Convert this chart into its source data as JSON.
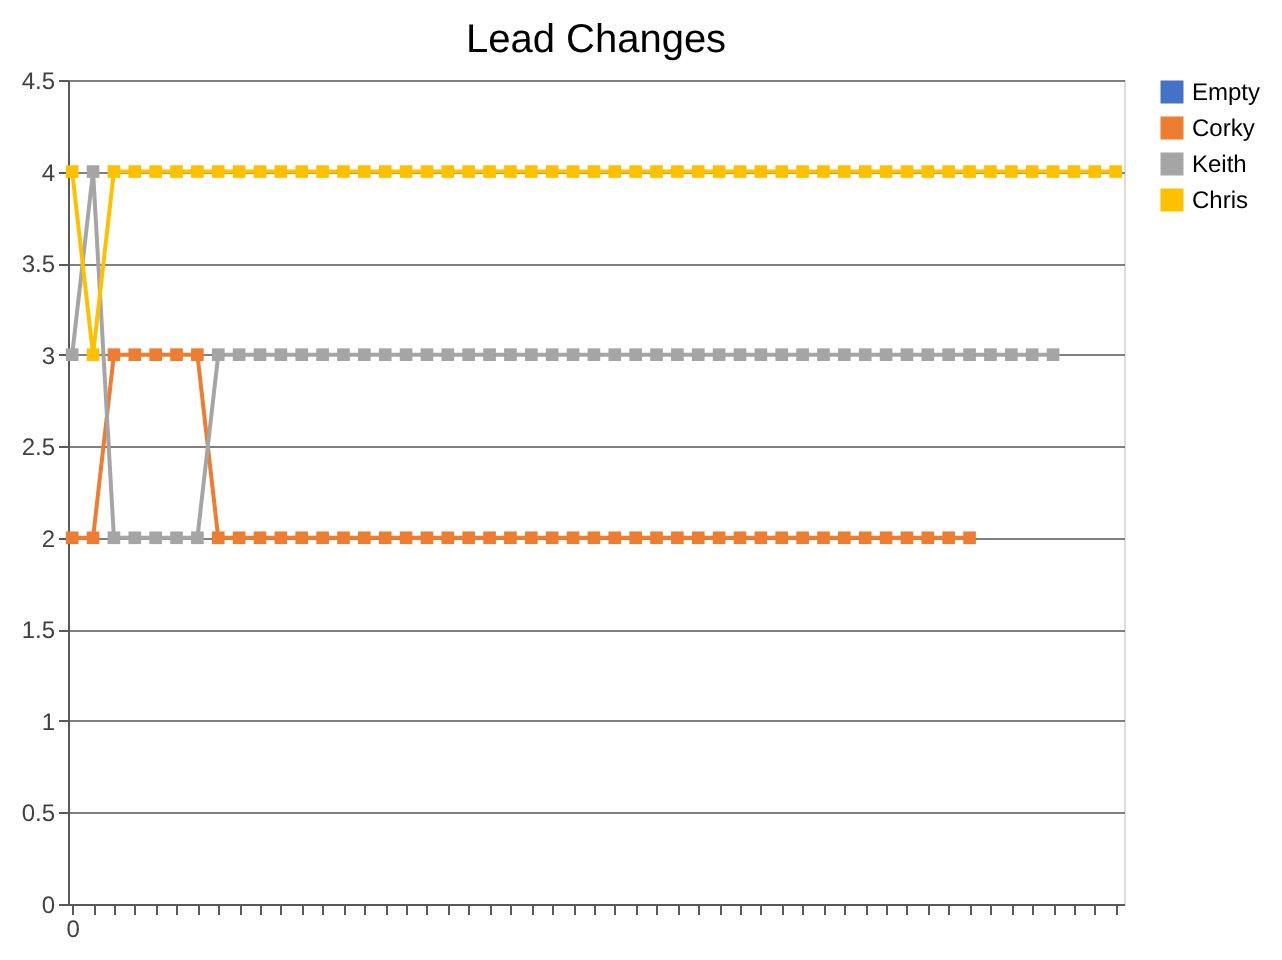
{
  "chart_data": {
    "type": "line",
    "title": "Lead Changes",
    "categories": [
      "0",
      null,
      null,
      null,
      null,
      null,
      null,
      null,
      null,
      null,
      null,
      null,
      null,
      null,
      null,
      null,
      null,
      null,
      null,
      null,
      null,
      null,
      null,
      null,
      null,
      null,
      null,
      null,
      null,
      null,
      null,
      null,
      null,
      null,
      null,
      null,
      null,
      null,
      null,
      null,
      null,
      null,
      null,
      null,
      null,
      null,
      null,
      null,
      null,
      null,
      null
    ],
    "series": [
      {
        "name": "Empty",
        "color": "#4472c4",
        "values": [
          null,
          null,
          null,
          null,
          null,
          null,
          null,
          null,
          null,
          null,
          null,
          null,
          null,
          null,
          null,
          null,
          null,
          null,
          null,
          null,
          null,
          null,
          null,
          null,
          null,
          null,
          null,
          null,
          null,
          null,
          null,
          null,
          null,
          null,
          null,
          null,
          null,
          null,
          null,
          null,
          null,
          null,
          null,
          null,
          null,
          null,
          null,
          null,
          null,
          null,
          null
        ]
      },
      {
        "name": "Corky",
        "color": "#ed7d31",
        "values": [
          2,
          2,
          3,
          3,
          3,
          3,
          3,
          2,
          2,
          2,
          2,
          2,
          2,
          2,
          2,
          2,
          2,
          2,
          2,
          2,
          2,
          2,
          2,
          2,
          2,
          2,
          2,
          2,
          2,
          2,
          2,
          2,
          2,
          2,
          2,
          2,
          2,
          2,
          2,
          2,
          2,
          2,
          2,
          2,
          null,
          null,
          null,
          null,
          null,
          null,
          null
        ]
      },
      {
        "name": "Keith",
        "color": "#a5a5a5",
        "values": [
          3,
          4,
          2,
          2,
          2,
          2,
          2,
          3,
          3,
          3,
          3,
          3,
          3,
          3,
          3,
          3,
          3,
          3,
          3,
          3,
          3,
          3,
          3,
          3,
          3,
          3,
          3,
          3,
          3,
          3,
          3,
          3,
          3,
          3,
          3,
          3,
          3,
          3,
          3,
          3,
          3,
          3,
          3,
          3,
          3,
          3,
          3,
          3,
          null,
          null,
          null
        ]
      },
      {
        "name": "Chris",
        "color": "#ffc000",
        "values": [
          4,
          3,
          4,
          4,
          4,
          4,
          4,
          4,
          4,
          4,
          4,
          4,
          4,
          4,
          4,
          4,
          4,
          4,
          4,
          4,
          4,
          4,
          4,
          4,
          4,
          4,
          4,
          4,
          4,
          4,
          4,
          4,
          4,
          4,
          4,
          4,
          4,
          4,
          4,
          4,
          4,
          4,
          4,
          4,
          4,
          4,
          4,
          4,
          4,
          4,
          4
        ]
      }
    ],
    "ylim": [
      0,
      4.5
    ],
    "yticks": [
      0,
      0.5,
      1,
      1.5,
      2,
      2.5,
      3,
      3.5,
      4,
      4.5
    ],
    "grid": "y",
    "legend": "right",
    "marker": "square",
    "line_style": "solid"
  }
}
